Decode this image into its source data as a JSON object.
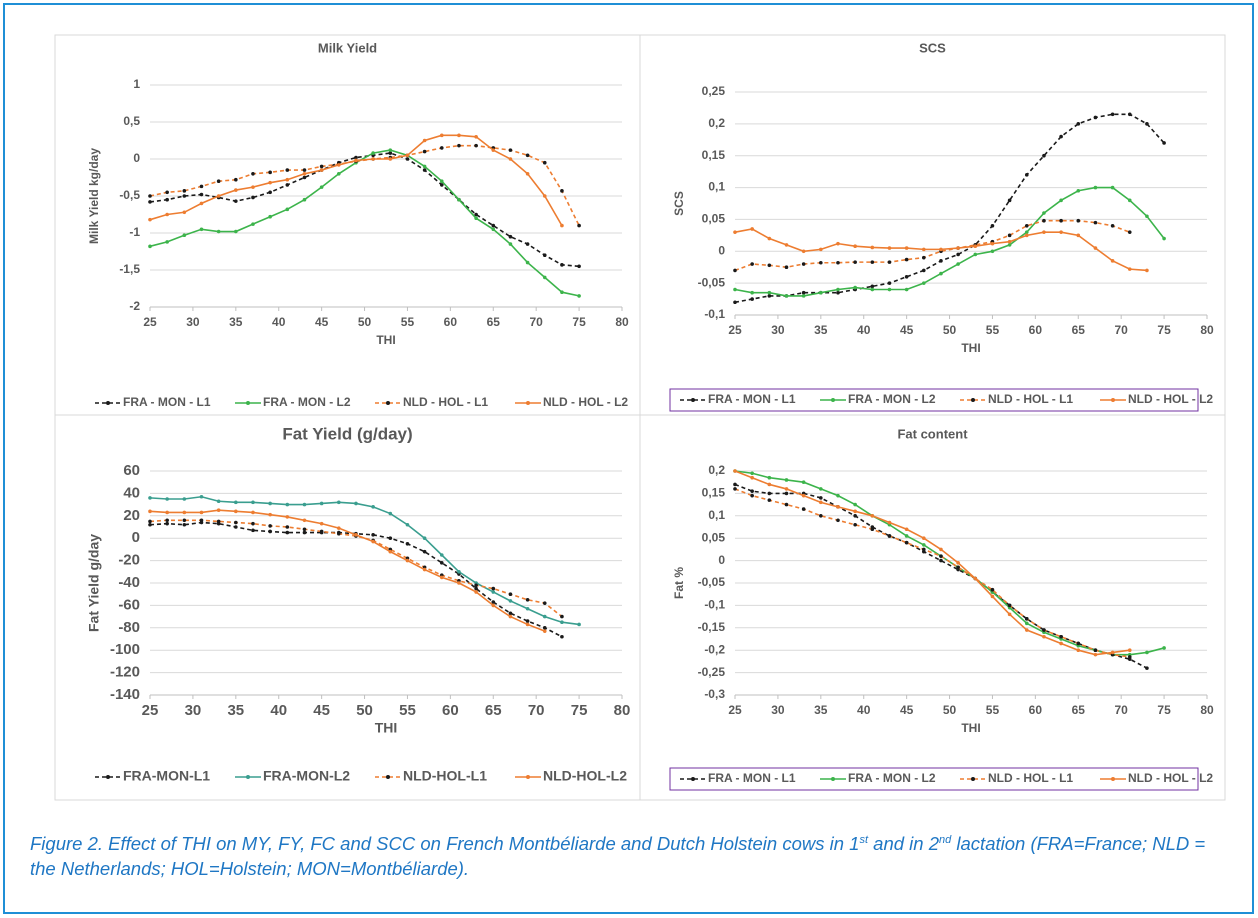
{
  "chart_data": [
    {
      "type": "line",
      "title": "Milk Yield",
      "x_label": "THI",
      "y_label": "Milk Yield kg/day",
      "legend_box": false,
      "grid": true,
      "x": [
        25,
        27,
        29,
        31,
        33,
        35,
        37,
        39,
        41,
        43,
        45,
        47,
        49,
        51,
        53,
        55,
        57,
        59,
        61,
        63,
        65,
        67,
        69,
        71,
        73,
        75
      ],
      "xlim": [
        25,
        80
      ],
      "xticks": [
        25,
        30,
        35,
        40,
        45,
        50,
        55,
        60,
        65,
        70,
        75,
        80
      ],
      "ylim": [
        -2,
        1
      ],
      "yticks": [
        -2,
        {
          "value": -1.5,
          "label": "-1,5"
        },
        -1,
        {
          "value": -0.5,
          "label": "-0,5"
        },
        0,
        {
          "value": 0.5,
          "label": "0,5"
        },
        1
      ],
      "series": [
        {
          "name": "FRA - MON - L1",
          "color": "#1a1a1a",
          "line_style": "dashed",
          "values": [
            -0.58,
            -0.55,
            -0.5,
            -0.48,
            -0.52,
            -0.57,
            -0.52,
            -0.45,
            -0.35,
            -0.25,
            -0.15,
            -0.05,
            0.02,
            0.05,
            0.08,
            0,
            -0.15,
            -0.35,
            -0.55,
            -0.75,
            -0.9,
            -1.05,
            -1.15,
            -1.3,
            -1.43,
            -1.45
          ]
        },
        {
          "name": "FRA - MON - L2",
          "color": "#3cb44b",
          "line_style": "solid",
          "values": [
            -1.18,
            -1.12,
            -1.03,
            -0.95,
            -0.98,
            -0.98,
            -0.88,
            -0.78,
            -0.68,
            -0.55,
            -0.38,
            -0.2,
            -0.05,
            0.08,
            0.12,
            0.05,
            -0.1,
            -0.3,
            -0.55,
            -0.8,
            -0.95,
            -1.15,
            -1.4,
            -1.6,
            -1.8,
            -1.85
          ]
        },
        {
          "name": "NLD - HOL - L1",
          "color": "#ed7d31",
          "line_style": "dashed",
          "values": [
            -0.5,
            -0.45,
            -0.43,
            -0.37,
            -0.3,
            -0.28,
            -0.2,
            -0.18,
            -0.15,
            -0.15,
            -0.1,
            -0.07,
            -0.03,
            0,
            0.02,
            0.05,
            0.1,
            0.15,
            0.18,
            0.18,
            0.15,
            0.12,
            0.05,
            -0.05,
            -0.43,
            -0.9
          ]
        },
        {
          "name": "NLD - HOL - L2",
          "color": "#ed7d31",
          "line_style": "solid",
          "values": [
            -0.82,
            -0.75,
            -0.72,
            -0.6,
            -0.5,
            -0.42,
            -0.38,
            -0.32,
            -0.28,
            -0.2,
            -0.15,
            -0.08,
            -0.02,
            0,
            0,
            0.05,
            0.25,
            0.32,
            0.32,
            0.3,
            0.12,
            0,
            -0.2,
            -0.5,
            -0.9,
            null
          ]
        }
      ]
    },
    {
      "type": "line",
      "title": "SCS",
      "x_label": "THI",
      "y_label": "SCS",
      "legend_box": true,
      "grid": true,
      "x": [
        25,
        27,
        29,
        31,
        33,
        35,
        37,
        39,
        41,
        43,
        45,
        47,
        49,
        51,
        53,
        55,
        57,
        59,
        61,
        63,
        65,
        67,
        69,
        71,
        73,
        75
      ],
      "xlim": [
        25,
        80
      ],
      "xticks": [
        25,
        30,
        35,
        40,
        45,
        50,
        55,
        60,
        65,
        70,
        75,
        80
      ],
      "ylim": [
        -0.1,
        0.25
      ],
      "yticks": [
        {
          "value": -0.1,
          "label": "-0,1"
        },
        {
          "value": -0.05,
          "label": "-0,05"
        },
        0,
        {
          "value": 0.05,
          "label": "0,05"
        },
        {
          "value": 0.1,
          "label": "0,1"
        },
        {
          "value": 0.15,
          "label": "0,15"
        },
        {
          "value": 0.2,
          "label": "0,2"
        },
        {
          "value": 0.25,
          "label": "0,25"
        }
      ],
      "series": [
        {
          "name": "FRA - MON - L1",
          "color": "#1a1a1a",
          "line_style": "dashed",
          "values": [
            -0.08,
            -0.075,
            -0.07,
            -0.07,
            -0.065,
            -0.065,
            -0.065,
            -0.06,
            -0.055,
            -0.05,
            -0.04,
            -0.03,
            -0.015,
            -0.005,
            0.01,
            0.04,
            0.08,
            0.12,
            0.15,
            0.18,
            0.2,
            0.21,
            0.215,
            0.215,
            0.2,
            0.17
          ]
        },
        {
          "name": "FRA - MON - L2",
          "color": "#3cb44b",
          "line_style": "solid",
          "values": [
            -0.06,
            -0.065,
            -0.065,
            -0.07,
            -0.07,
            -0.065,
            -0.06,
            -0.057,
            -0.06,
            -0.06,
            -0.06,
            -0.05,
            -0.035,
            -0.02,
            -0.005,
            0,
            0.01,
            0.03,
            0.06,
            0.08,
            0.095,
            0.1,
            0.1,
            0.08,
            0.055,
            0.02
          ]
        },
        {
          "name": "NLD - HOL - L1",
          "color": "#ed7d31",
          "line_style": "dashed",
          "values": [
            -0.03,
            -0.02,
            -0.022,
            -0.025,
            -0.02,
            -0.018,
            -0.018,
            -0.017,
            -0.017,
            -0.017,
            -0.013,
            -0.01,
            0,
            0.005,
            0.01,
            0.015,
            0.025,
            0.04,
            0.048,
            0.048,
            0.048,
            0.045,
            0.04,
            0.03,
            null,
            null
          ]
        },
        {
          "name": "NLD - HOL - L2",
          "color": "#ed7d31",
          "line_style": "solid",
          "values": [
            0.03,
            0.035,
            0.02,
            0.01,
            0,
            0.003,
            0.012,
            0.008,
            0.006,
            0.005,
            0.005,
            0.003,
            0.003,
            0.005,
            0.008,
            0.012,
            0.015,
            0.025,
            0.03,
            0.03,
            0.025,
            0.005,
            -0.015,
            -0.028,
            -0.03,
            null
          ]
        }
      ]
    },
    {
      "type": "line",
      "title": "Fat Yield (g/day)",
      "x_label": "THI",
      "y_label": "Fat Yield g/day",
      "legend_box": false,
      "grid": true,
      "x": [
        25,
        27,
        29,
        31,
        33,
        35,
        37,
        39,
        41,
        43,
        45,
        47,
        49,
        51,
        53,
        55,
        57,
        59,
        61,
        63,
        65,
        67,
        69,
        71,
        73,
        75
      ],
      "xlim": [
        25,
        80
      ],
      "xticks": [
        25,
        30,
        35,
        40,
        45,
        50,
        55,
        60,
        65,
        70,
        75,
        80
      ],
      "ylim": [
        -140,
        60
      ],
      "yticks": [
        -140,
        -120,
        -100,
        -80,
        -60,
        -40,
        -20,
        0,
        20,
        40,
        60
      ],
      "series": [
        {
          "name": "FRA-MON-L1",
          "color": "#1a1a1a",
          "line_style": "dashed",
          "values": [
            12,
            13,
            12,
            14,
            13,
            10,
            7,
            6,
            5,
            5,
            5,
            5,
            4,
            3,
            0,
            -5,
            -12,
            -22,
            -32,
            -45,
            -57,
            -67,
            -74,
            -80,
            -88,
            null
          ]
        },
        {
          "name": "FRA-MON-L2",
          "color": "#3a9e8f",
          "line_style": "solid",
          "values": [
            36,
            35,
            35,
            37,
            33,
            32,
            32,
            31,
            30,
            30,
            31,
            32,
            31,
            28,
            22,
            12,
            0,
            -15,
            -30,
            -40,
            -48,
            -56,
            -63,
            -70,
            -75,
            -77
          ]
        },
        {
          "name": "NLD-HOL-L1",
          "color": "#ed7d31",
          "line_style": "dashed",
          "values": [
            15,
            16,
            16,
            16,
            15,
            14,
            13,
            11,
            10,
            8,
            6,
            4,
            2,
            -2,
            -10,
            -18,
            -26,
            -33,
            -38,
            -42,
            -45,
            -50,
            -55,
            -58,
            -70,
            null
          ]
        },
        {
          "name": "NLD-HOL-L2",
          "color": "#ed7d31",
          "line_style": "solid",
          "values": [
            24,
            23,
            23,
            23,
            25,
            24,
            23,
            21,
            19,
            16,
            13,
            9,
            3,
            -3,
            -12,
            -20,
            -28,
            -35,
            -40,
            -48,
            -60,
            -70,
            -77,
            -83,
            null,
            null
          ]
        }
      ]
    },
    {
      "type": "line",
      "title": "Fat content",
      "x_label": "THI",
      "y_label": "Fat %",
      "legend_box": true,
      "grid": true,
      "x": [
        25,
        27,
        29,
        31,
        33,
        35,
        37,
        39,
        41,
        43,
        45,
        47,
        49,
        51,
        53,
        55,
        57,
        59,
        61,
        63,
        65,
        67,
        69,
        71,
        73,
        75
      ],
      "xlim": [
        25,
        80
      ],
      "xticks": [
        25,
        30,
        35,
        40,
        45,
        50,
        55,
        60,
        65,
        70,
        75,
        80
      ],
      "ylim": [
        -0.3,
        0.2
      ],
      "yticks": [
        {
          "value": -0.3,
          "label": "-0,3"
        },
        {
          "value": -0.25,
          "label": "-0,25"
        },
        {
          "value": -0.2,
          "label": "-0,2"
        },
        {
          "value": -0.15,
          "label": "-0,15"
        },
        {
          "value": -0.1,
          "label": "-0,1"
        },
        {
          "value": -0.05,
          "label": "-0,05"
        },
        0,
        {
          "value": 0.05,
          "label": "0,05"
        },
        {
          "value": 0.1,
          "label": "0,1"
        },
        {
          "value": 0.15,
          "label": "0,15"
        },
        {
          "value": 0.2,
          "label": "0,2"
        }
      ],
      "series": [
        {
          "name": "FRA - MON - L1",
          "color": "#1a1a1a",
          "line_style": "dashed",
          "values": [
            0.17,
            0.155,
            0.15,
            0.15,
            0.15,
            0.14,
            0.12,
            0.1,
            0.075,
            0.055,
            0.04,
            0.02,
            0,
            -0.02,
            -0.04,
            -0.07,
            -0.1,
            -0.13,
            -0.155,
            -0.17,
            -0.185,
            -0.2,
            -0.21,
            -0.22,
            -0.24,
            null
          ]
        },
        {
          "name": "FRA - MON - L2",
          "color": "#3cb44b",
          "line_style": "solid",
          "values": [
            0.2,
            0.195,
            0.185,
            0.18,
            0.175,
            0.16,
            0.145,
            0.125,
            0.1,
            0.08,
            0.055,
            0.035,
            0.01,
            -0.015,
            -0.04,
            -0.07,
            -0.105,
            -0.14,
            -0.16,
            -0.175,
            -0.19,
            -0.2,
            -0.21,
            -0.21,
            -0.205,
            -0.195
          ]
        },
        {
          "name": "NLD - HOL - L1",
          "color": "#ed7d31",
          "line_style": "dashed",
          "values": [
            0.16,
            0.145,
            0.135,
            0.125,
            0.115,
            0.1,
            0.09,
            0.08,
            0.07,
            0.055,
            0.04,
            0.025,
            0.01,
            -0.015,
            -0.04,
            -0.065,
            -0.1,
            -0.13,
            -0.155,
            -0.17,
            -0.185,
            -0.2,
            -0.21,
            -0.215,
            null,
            null
          ]
        },
        {
          "name": "NLD - HOL - L2",
          "color": "#ed7d31",
          "line_style": "solid",
          "values": [
            0.2,
            0.185,
            0.17,
            0.16,
            0.145,
            0.13,
            0.12,
            0.11,
            0.1,
            0.085,
            0.07,
            0.05,
            0.025,
            -0.005,
            -0.04,
            -0.08,
            -0.12,
            -0.155,
            -0.17,
            -0.185,
            -0.2,
            -0.21,
            -0.205,
            -0.2,
            null,
            null
          ]
        }
      ]
    }
  ],
  "caption": [
    "Figure 2. Effect of THI on MY, FY, FC and SCC on French Montbéliarde and Dutch Holstein cows in 1",
    "st",
    " and in 2",
    "nd",
    " lactation (FRA=France; NLD = the Netherlands; HOL=Holstein; MON=Montbéliarde)."
  ]
}
